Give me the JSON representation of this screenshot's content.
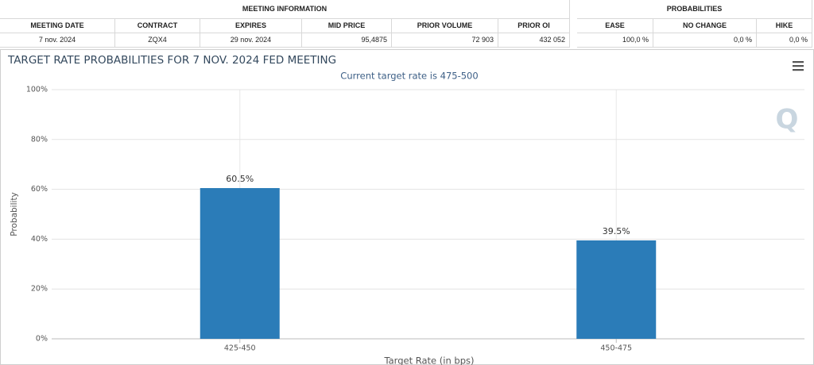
{
  "meeting_table": {
    "title": "MEETING INFORMATION",
    "columns": [
      "MEETING DATE",
      "CONTRACT",
      "EXPIRES",
      "MID PRICE",
      "PRIOR VOLUME",
      "PRIOR OI"
    ],
    "rows": [
      [
        "7 nov. 2024",
        "ZQX4",
        "29 nov. 2024",
        "95,4875",
        "72 903",
        "432 052"
      ]
    ]
  },
  "probability_table": {
    "title": "PROBABILITIES",
    "columns": [
      "EASE",
      "NO CHANGE",
      "HIKE"
    ],
    "rows": [
      [
        "100,0 %",
        "0,0 %",
        "0,0 %"
      ]
    ]
  },
  "chart_data": {
    "type": "bar",
    "title": "TARGET RATE PROBABILITIES FOR 7 NOV. 2024 FED MEETING",
    "subtitle": "Current target rate is 475-500",
    "x_label": "Target Rate (in bps)",
    "y_label": "Probability",
    "categories": [
      "425-450",
      "450-475"
    ],
    "values": [
      60.5,
      39.5
    ],
    "value_labels": [
      "60.5%",
      "39.5%"
    ],
    "color": "#2b7cb8",
    "ylim": [
      0,
      100
    ],
    "yticks": [
      {
        "value": 0,
        "label": "0%"
      },
      {
        "value": 20,
        "label": "20%"
      },
      {
        "value": 40,
        "label": "40%"
      },
      {
        "value": 60,
        "label": "60%"
      },
      {
        "value": 80,
        "label": "80%"
      },
      {
        "value": 100,
        "label": "100%"
      }
    ],
    "grid": true
  }
}
